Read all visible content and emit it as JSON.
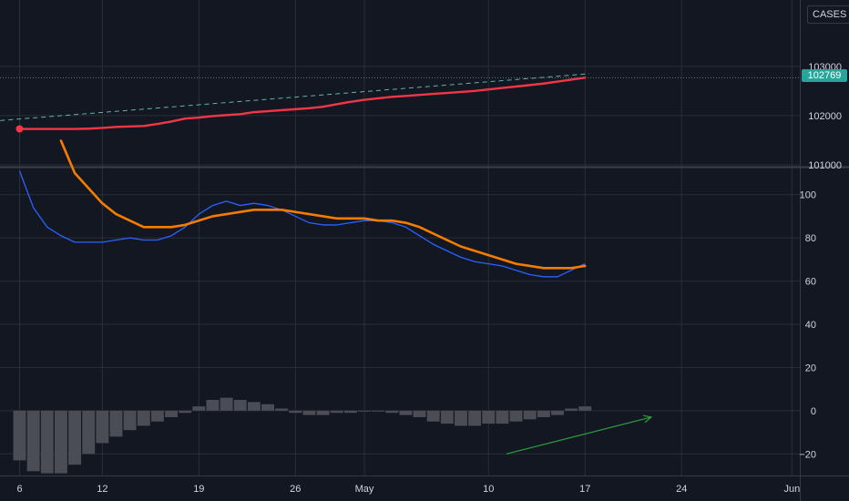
{
  "header": {
    "symbol_label": "CASES"
  },
  "price_tag": {
    "value": "102769",
    "color": "#26a69a"
  },
  "colors": {
    "background": "#131722",
    "grid": "#2a2e39",
    "axis_text": "#d1d4dc",
    "cases_line": "#f23645",
    "trend_line": "#5fb3a8",
    "fast_line": "#2962ff",
    "slow_line": "#f57c00",
    "histogram": "#4a4d55",
    "arrow": "#2e9e3e"
  },
  "x_axis": {
    "ticks": [
      {
        "label": "6",
        "day": 0
      },
      {
        "label": "12",
        "day": 6
      },
      {
        "label": "19",
        "day": 13
      },
      {
        "label": "26",
        "day": 20
      },
      {
        "label": "May",
        "day": 25
      },
      {
        "label": "10",
        "day": 34
      },
      {
        "label": "17",
        "day": 41
      },
      {
        "label": "24",
        "day": 48
      },
      {
        "label": "Jun",
        "day": 56
      }
    ]
  },
  "chart_data": [
    {
      "type": "line",
      "pane": "price",
      "ylim": [
        101000,
        103200
      ],
      "yticks": [
        "103000",
        "102000",
        "101000"
      ],
      "ytick_values": [
        103000,
        102000,
        101000
      ],
      "series": [
        {
          "role": "cases",
          "values": [
            101730,
            101730,
            101730,
            101730,
            101730,
            101735,
            101750,
            101770,
            101780,
            101790,
            101830,
            101880,
            101940,
            101960,
            101990,
            102010,
            102030,
            102070,
            102090,
            102110,
            102130,
            102150,
            102180,
            102230,
            102280,
            102320,
            102350,
            102380,
            102400,
            102420,
            102440,
            102460,
            102480,
            102500,
            102530,
            102560,
            102590,
            102620,
            102650,
            102690,
            102730,
            102769
          ]
        },
        {
          "role": "trend",
          "dashed": true,
          "from": [
            -1.4,
            101900
          ],
          "to": [
            41.3,
            102850
          ]
        }
      ],
      "start_marker": {
        "day": 0,
        "value": 101730
      }
    },
    {
      "type": "line",
      "pane": "oscillator",
      "ylim": [
        -30,
        110
      ],
      "yticks": [
        "100",
        "80",
        "60",
        "40",
        "20",
        "0",
        "−20"
      ],
      "ytick_values": [
        100,
        80,
        60,
        40,
        20,
        0,
        -20
      ],
      "series": [
        {
          "role": "fast",
          "values": [
            111,
            94,
            85,
            81,
            78,
            78,
            78,
            79,
            80,
            79,
            79,
            81,
            85,
            91,
            95,
            97,
            95,
            96,
            95,
            93,
            90,
            87,
            86,
            86,
            87,
            88,
            88,
            87,
            85,
            81,
            77,
            74,
            71,
            69,
            68,
            67,
            65,
            63,
            62,
            62,
            65,
            68
          ]
        },
        {
          "role": "slow",
          "values": [
            null,
            null,
            null,
            125,
            110,
            103,
            96,
            91,
            88,
            85,
            85,
            85,
            86,
            88,
            90,
            91,
            92,
            93,
            93,
            93,
            92,
            91,
            90,
            89,
            89,
            89,
            88,
            88,
            87,
            85,
            82,
            79,
            76,
            74,
            72,
            70,
            68,
            67,
            66,
            66,
            66,
            67
          ]
        }
      ]
    },
    {
      "type": "bar",
      "pane": "histogram",
      "ylim": [
        -30,
        110
      ],
      "values": [
        -23,
        -28,
        -29,
        -29,
        -25,
        -20,
        -15,
        -12,
        -9,
        -7,
        -5,
        -3,
        -1,
        2,
        5,
        6,
        5,
        4,
        3,
        1,
        -1,
        -2,
        -2,
        -1,
        -1,
        0,
        0,
        -1,
        -2,
        -3,
        -5,
        -6,
        -7,
        -7,
        -6,
        -6,
        -5,
        -4,
        -3,
        -2,
        1,
        2
      ],
      "annotation": {
        "type": "arrow",
        "from": [
          35.3,
          -20
        ],
        "to": [
          45.8,
          -3
        ]
      }
    }
  ]
}
